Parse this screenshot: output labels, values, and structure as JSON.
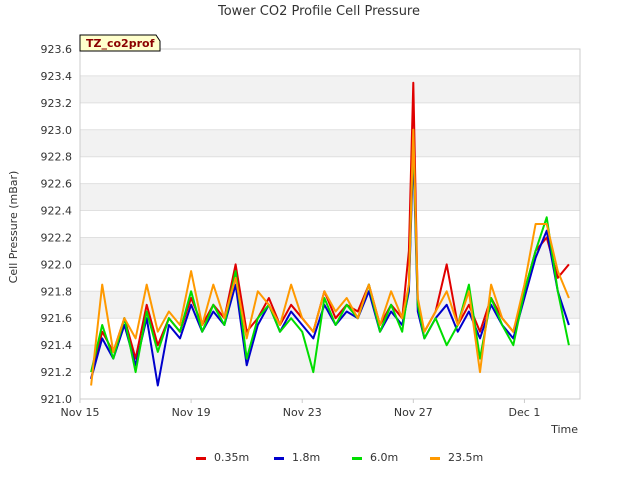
{
  "chart_data": {
    "type": "line",
    "title": "Tower CO2 Profile Cell Pressure",
    "badge": "TZ_co2prof",
    "xlabel": "Time",
    "ylabel": "Cell Pressure (mBar)",
    "ylim": [
      921.0,
      923.6
    ],
    "xlim": [
      0,
      22.5
    ],
    "yticks": [
      "921.0",
      "921.2",
      "921.4",
      "921.6",
      "921.8",
      "922.0",
      "922.2",
      "922.4",
      "922.6",
      "922.8",
      "923.0",
      "923.2",
      "923.4",
      "923.6"
    ],
    "xticks": [
      {
        "label": "Nov 15",
        "day": 0
      },
      {
        "label": "Nov 19",
        "day": 5
      },
      {
        "label": "Nov 23",
        "day": 10
      },
      {
        "label": "Nov 27",
        "day": 15
      },
      {
        "label": "Dec 1",
        "day": 20
      }
    ],
    "grid": true,
    "legend_position": "bottom",
    "series": [
      {
        "name": "0.35m",
        "color": "#e00000",
        "x": [
          0.5,
          1,
          1.5,
          2,
          2.5,
          3,
          3.5,
          4,
          4.5,
          5,
          5.5,
          6,
          6.5,
          7,
          7.5,
          8,
          8.5,
          9,
          9.5,
          10,
          10.5,
          11,
          11.5,
          12,
          12.5,
          13,
          13.5,
          14,
          14.5,
          14.8,
          15,
          15.2,
          15.5,
          16,
          16.5,
          17,
          17.5,
          18,
          18.5,
          19,
          19.5,
          20,
          20.5,
          21,
          21.5,
          22
        ],
        "y": [
          921.15,
          921.5,
          921.35,
          921.6,
          921.3,
          921.7,
          921.4,
          921.6,
          921.5,
          921.75,
          921.55,
          921.7,
          921.6,
          922.0,
          921.5,
          921.6,
          921.75,
          921.55,
          921.7,
          921.6,
          921.5,
          921.8,
          921.6,
          921.7,
          921.65,
          921.85,
          921.55,
          921.7,
          921.6,
          922.1,
          923.35,
          921.7,
          921.5,
          921.65,
          922.0,
          921.55,
          921.7,
          921.5,
          921.75,
          921.6,
          921.5,
          921.8,
          922.1,
          922.2,
          921.9,
          922.0
        ]
      },
      {
        "name": "1.8m",
        "color": "#0000cc",
        "x": [
          0.5,
          1,
          1.5,
          2,
          2.5,
          3,
          3.5,
          4,
          4.5,
          5,
          5.5,
          6,
          6.5,
          7,
          7.5,
          8,
          8.5,
          9,
          9.5,
          10,
          10.5,
          11,
          11.5,
          12,
          12.5,
          13,
          13.5,
          14,
          14.5,
          14.8,
          15,
          15.2,
          15.5,
          16,
          16.5,
          17,
          17.5,
          18,
          18.5,
          19,
          19.5,
          20,
          20.5,
          21,
          21.5,
          22
        ],
        "y": [
          921.15,
          921.45,
          921.3,
          921.55,
          921.25,
          921.6,
          921.1,
          921.55,
          921.45,
          921.7,
          921.5,
          921.65,
          921.55,
          921.85,
          921.25,
          921.55,
          921.7,
          921.5,
          921.65,
          921.55,
          921.45,
          921.7,
          921.55,
          921.65,
          921.6,
          921.8,
          921.5,
          921.65,
          921.55,
          921.8,
          922.85,
          921.65,
          921.45,
          921.6,
          921.7,
          921.5,
          921.65,
          921.45,
          921.7,
          921.55,
          921.45,
          921.75,
          922.05,
          922.25,
          921.8,
          921.55
        ]
      },
      {
        "name": "6.0m",
        "color": "#00dd00",
        "x": [
          0.5,
          1,
          1.5,
          2,
          2.5,
          3,
          3.5,
          4,
          4.5,
          5,
          5.5,
          6,
          6.5,
          7,
          7.5,
          8,
          8.5,
          9,
          9.5,
          10,
          10.5,
          11,
          11.5,
          12,
          12.5,
          13,
          13.5,
          14,
          14.5,
          14.8,
          15,
          15.2,
          15.5,
          16,
          16.5,
          17,
          17.5,
          18,
          18.5,
          19,
          19.5,
          20,
          20.5,
          21,
          21.5,
          22
        ],
        "y": [
          921.2,
          921.55,
          921.3,
          921.6,
          921.2,
          921.65,
          921.35,
          921.6,
          921.5,
          921.8,
          921.5,
          921.7,
          921.55,
          921.95,
          921.3,
          921.6,
          921.7,
          921.5,
          921.6,
          921.5,
          921.2,
          921.75,
          921.55,
          921.7,
          921.6,
          921.85,
          921.5,
          921.7,
          921.5,
          921.85,
          922.95,
          921.7,
          921.45,
          921.6,
          921.4,
          921.55,
          921.85,
          921.3,
          921.75,
          921.55,
          921.4,
          921.8,
          922.1,
          922.35,
          921.8,
          921.4
        ]
      },
      {
        "name": "23.5m",
        "color": "#ff9900",
        "x": [
          0.5,
          1,
          1.5,
          2,
          2.5,
          3,
          3.5,
          4,
          4.5,
          5,
          5.5,
          6,
          6.5,
          7,
          7.5,
          8,
          8.5,
          9,
          9.5,
          10,
          10.5,
          11,
          11.5,
          12,
          12.5,
          13,
          13.5,
          14,
          14.5,
          14.8,
          15,
          15.2,
          15.5,
          16,
          16.5,
          17,
          17.5,
          18,
          18.5,
          19,
          19.5,
          20,
          20.5,
          21,
          21.5,
          22
        ],
        "y": [
          921.1,
          921.85,
          921.35,
          921.6,
          921.45,
          921.85,
          921.5,
          921.65,
          921.55,
          921.95,
          921.55,
          921.85,
          921.6,
          921.9,
          921.45,
          921.8,
          921.7,
          921.55,
          921.85,
          921.6,
          921.5,
          921.8,
          921.65,
          921.75,
          921.6,
          921.85,
          921.55,
          921.8,
          921.6,
          921.85,
          923.0,
          921.75,
          921.5,
          921.65,
          921.8,
          921.55,
          921.8,
          921.2,
          921.85,
          921.6,
          921.5,
          921.85,
          922.3,
          922.3,
          921.95,
          921.75
        ]
      }
    ]
  }
}
